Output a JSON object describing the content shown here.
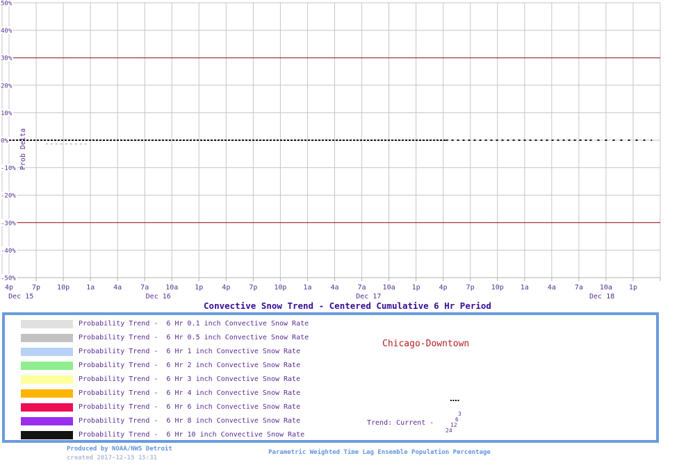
{
  "chart_data": {
    "type": "line",
    "title": "Convective Snow Trend - Centered Cumulative 6 Hr Period",
    "ylabel": "Prob Delta",
    "ylim": [
      -50,
      50
    ],
    "ytick_step": 10,
    "ytick_labels": [
      "50%",
      "40%",
      "30%",
      "20%",
      "10%",
      "0%",
      "-10%",
      "-20%",
      "-30%",
      "-40%",
      "-50%"
    ],
    "xtick_labels": [
      "4p",
      "7p",
      "10p",
      "1a",
      "4a",
      "7a",
      "10a",
      "1p",
      "4p",
      "7p",
      "10p",
      "1a",
      "4a",
      "7a",
      "10a",
      "1p",
      "4p",
      "7p",
      "10p",
      "1a",
      "4a",
      "7a",
      "10a",
      "1p"
    ],
    "date_labels": [
      {
        "label": "Dec 15",
        "pos": 0.44
      },
      {
        "label": "Dec 16",
        "pos": 5.5
      },
      {
        "label": "Dec 17",
        "pos": 13.25
      },
      {
        "label": "Dec 18",
        "pos": 21.85
      }
    ],
    "grid": true,
    "thresholds": [
      {
        "value": 30
      },
      {
        "value": -30
      }
    ],
    "series": [
      {
        "name": "Trend: Current",
        "style": "dashed",
        "color": "#111111",
        "constant_value": 0,
        "from_tick": 0,
        "to_tick": 23.7,
        "note": "flat probability-delta of 0% for entire period"
      },
      {
        "name": "faint secondary trend",
        "style": "dashed",
        "color": "#c9c9c9",
        "constant_value": -0.6,
        "from_tick": 1.35,
        "to_tick": 2.9
      }
    ]
  },
  "colors": {
    "grid": "#c6c6c6",
    "axis": "#b0b0b0",
    "threshold": "#8b0000",
    "tick_text": "#53318f",
    "title": "#380d94",
    "legend_text": "#5a2d91",
    "station": "#b22222",
    "trend_text": "#5a2d91",
    "dots": "#000000",
    "footer_blue": "#6495dd",
    "footer_muted": "#b4bfd4",
    "box_border": "#6a9bdc"
  },
  "legend": {
    "items": [
      {
        "color": "#e0e0e0",
        "label": "Probability Trend -  6 Hr 0.1 inch Convective Snow Rate"
      },
      {
        "color": "#c2c2c2",
        "label": "Probability Trend -  6 Hr 0.5 inch Convective Snow Rate"
      },
      {
        "color": "#b8d2f5",
        "label": "Probability Trend -  6 Hr 1 inch Convective Snow Rate"
      },
      {
        "color": "#90ee90",
        "label": "Probability Trend -  6 Hr 2 inch Convective Snow Rate"
      },
      {
        "color": "#ffff9e",
        "label": "Probability Trend -  6 Hr 3 inch Convective Snow Rate"
      },
      {
        "color": "#ffb400",
        "label": "Probability Trend -  6 Hr 4 inch Convective Snow Rate"
      },
      {
        "color": "#ed0e56",
        "label": "Probability Trend -  6 Hr 6 inch Convective Snow Rate"
      },
      {
        "color": "#9a2ff0",
        "label": "Probability Trend -  6 Hr 8 inch Convective Snow Rate"
      },
      {
        "color": "#141414",
        "label": "Probability Trend -  6 Hr 10 inch Convective Snow Rate"
      }
    ]
  },
  "station": "Chicago-Downtown",
  "trend_key": {
    "label": "Trend: Current -",
    "hours": [
      "3",
      "6",
      "12",
      "24"
    ]
  },
  "footer": {
    "produced_by": "Produced by NOAA/NWS Detroit",
    "created": "created 2017-12-15 15:31",
    "note": "Parametric Weighted Time Lag Ensemble Population Percentage"
  }
}
